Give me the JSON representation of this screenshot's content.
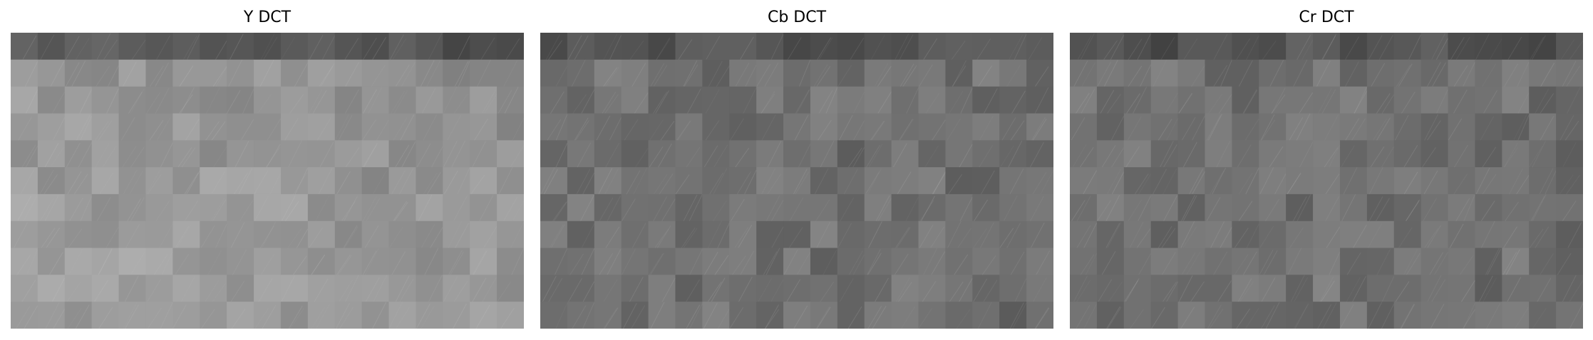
{
  "figure": {
    "panels": [
      {
        "title": "Y DCT",
        "rows": 11,
        "cols": 19,
        "brightness": "high"
      },
      {
        "title": "Cb DCT",
        "rows": 11,
        "cols": 19,
        "brightness": "medium"
      },
      {
        "title": "Cr DCT",
        "rows": 11,
        "cols": 19,
        "brightness": "medium"
      }
    ]
  }
}
